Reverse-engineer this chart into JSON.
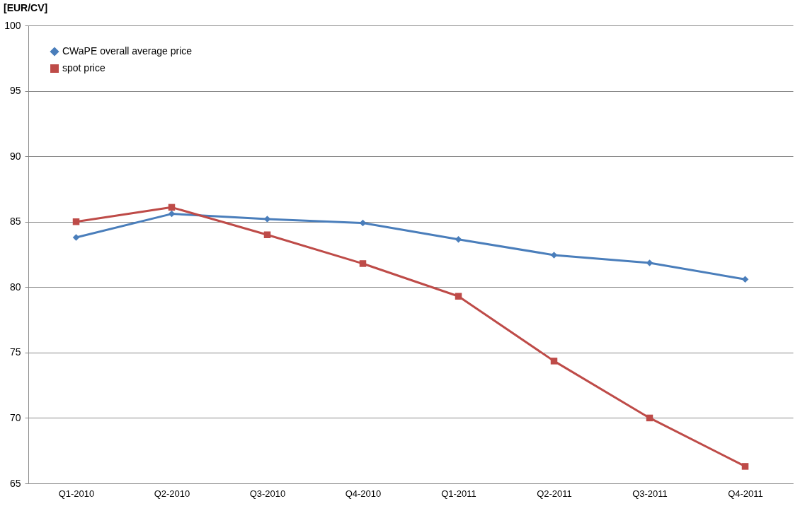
{
  "chart_data": {
    "type": "line",
    "ylabel": "[EUR/CV]",
    "categories": [
      "Q1-2010",
      "Q2-2010",
      "Q3-2010",
      "Q4-2010",
      "Q1-2011",
      "Q2-2011",
      "Q3-2011",
      "Q4-2011"
    ],
    "series": [
      {
        "name": "CWaPE overall average price",
        "color": "#4a7ebb",
        "marker": "diamond",
        "values": [
          83.8,
          85.6,
          85.2,
          84.9,
          83.65,
          82.45,
          81.85,
          80.6
        ]
      },
      {
        "name": "spot price",
        "color": "#be4b48",
        "marker": "square",
        "values": [
          85.0,
          86.1,
          84.0,
          81.8,
          79.3,
          74.35,
          70.0,
          66.3
        ]
      }
    ],
    "ylim": [
      65,
      100
    ],
    "yticks": [
      65,
      70,
      75,
      80,
      85,
      90,
      95,
      100
    ],
    "grid": "y",
    "legend": "top left",
    "line_style": "solid"
  }
}
